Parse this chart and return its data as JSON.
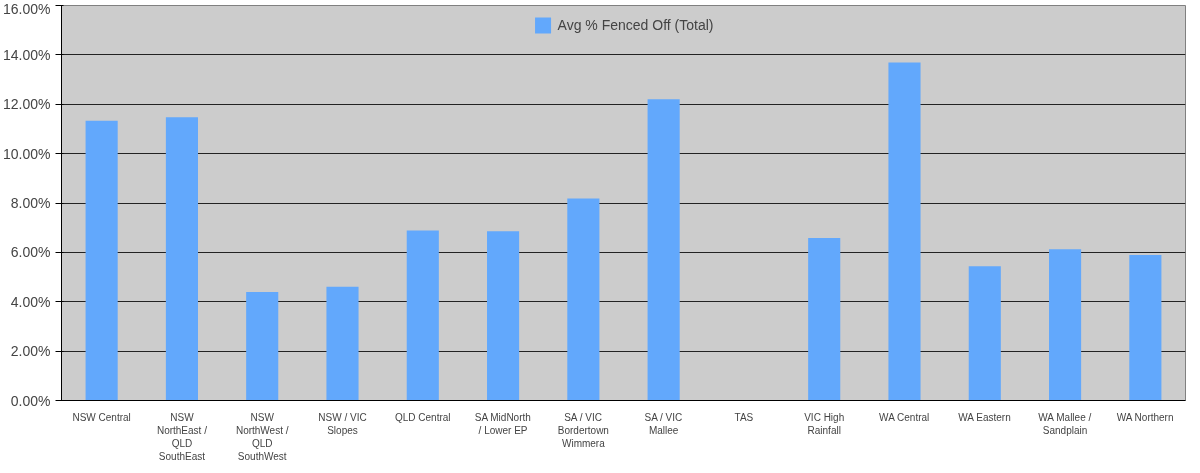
{
  "chart_data": {
    "type": "bar",
    "categories": [
      "NSW Central",
      "NSW NorthEast / QLD SouthEast",
      "NSW NorthWest / QLD SouthWest",
      "NSW / VIC Slopes",
      "QLD Central",
      "SA MidNorth / Lower EP",
      "SA / VIC Bordertown Wimmera",
      "SA / VIC Mallee",
      "TAS",
      "VIC High Rainfall",
      "WA Central",
      "WA Eastern",
      "WA Mallee / Sandplain",
      "WA Northern"
    ],
    "series": [
      {
        "name": "Avg % Fenced Off (Total)",
        "color": "#62a8fc",
        "values": [
          11.33,
          11.47,
          4.39,
          4.61,
          6.89,
          6.86,
          8.18,
          12.2,
          0,
          6.58,
          13.69,
          5.44,
          6.13,
          5.89
        ]
      }
    ],
    "ylim": [
      0,
      16
    ],
    "yticks": [
      {
        "value": 0,
        "label": "0.00%"
      },
      {
        "value": 2,
        "label": "2.00%"
      },
      {
        "value": 4,
        "label": "4.00%"
      },
      {
        "value": 6,
        "label": "6.00%"
      },
      {
        "value": 8,
        "label": "8.00%"
      },
      {
        "value": 10,
        "label": "10.00%"
      },
      {
        "value": 12,
        "label": "12.00%"
      },
      {
        "value": 14,
        "label": "14.00%"
      },
      {
        "value": 16,
        "label": "16.00%"
      }
    ],
    "grid": "y",
    "legend": "top"
  }
}
